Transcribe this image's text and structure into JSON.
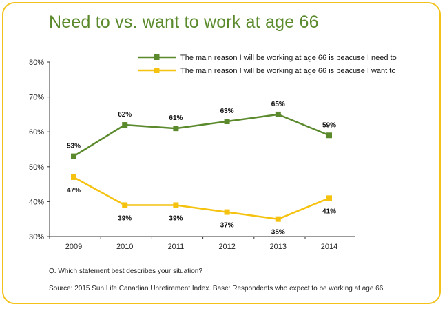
{
  "title": "Need to vs. want to work at age 66",
  "question": "Q. Which statement best describes your situation?",
  "source": "Source: 2015 Sun Life Canadian Unretirement Index. Base: Respondents who expect to be working at age 66.",
  "colors": {
    "need": "#5b8a2d",
    "want": "#f5c20f",
    "border": "#f2c21b",
    "title": "#5b8a2d"
  },
  "chart_data": {
    "type": "line",
    "title": "Need to vs. want to work at age 66",
    "categories": [
      "2009",
      "2010",
      "2011",
      "2012",
      "2013",
      "2014"
    ],
    "ylim": [
      30,
      80
    ],
    "yticks": [
      "30%",
      "40%",
      "50%",
      "60%",
      "70%",
      "80%"
    ],
    "grid": false,
    "legend_position": "top-right",
    "series": [
      {
        "name": "The main reason I will be working at age 66 is beacuse I need to",
        "values": [
          53,
          62,
          61,
          63,
          65,
          59
        ],
        "labels": [
          "53%",
          "62%",
          "61%",
          "63%",
          "65%",
          "59%"
        ],
        "color": "#5b8a2d"
      },
      {
        "name": "The main reason I will be working at age 66 is beacuse I want to",
        "values": [
          47,
          39,
          39,
          37,
          35,
          41
        ],
        "labels": [
          "47%",
          "39%",
          "39%",
          "37%",
          "35%",
          "41%"
        ],
        "color": "#f5c20f"
      }
    ]
  }
}
